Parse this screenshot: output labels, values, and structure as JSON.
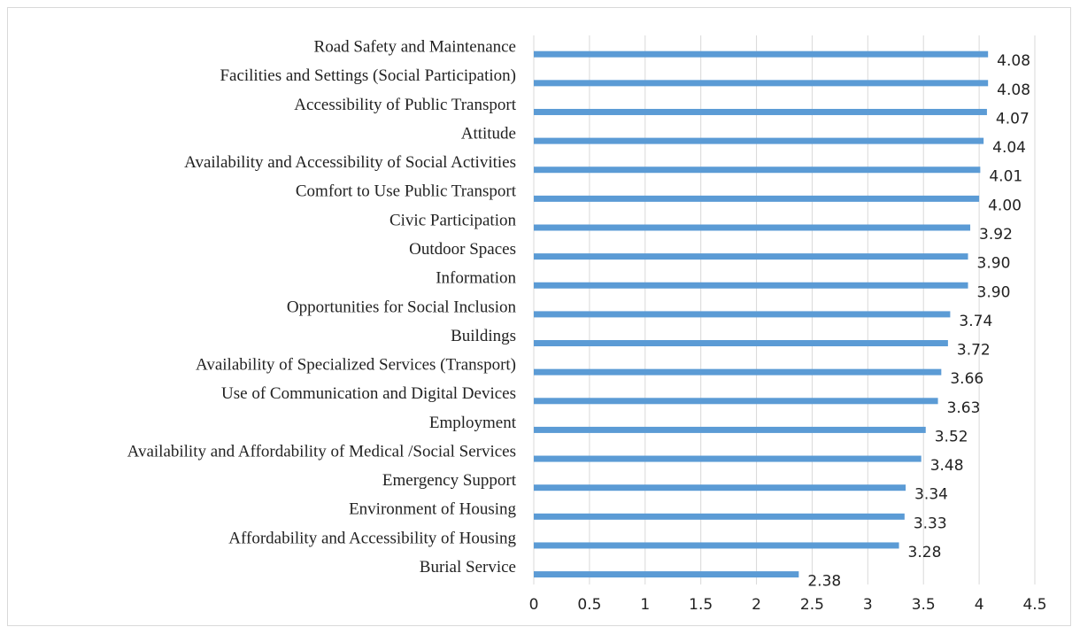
{
  "chart_data": {
    "type": "bar",
    "categories": [
      "Road Safety and Maintenance",
      "Facilities and Settings (Social Participation)",
      "Accessibility of Public Transport",
      "Attitude",
      "Availability and Accessibility of Social Activities",
      "Comfort to Use Public Transport",
      "Civic Participation",
      "Outdoor Spaces",
      "Information",
      "Opportunities for Social Inclusion",
      "Buildings",
      "Availability of Specialized Services (Transport)",
      "Use of Communication and Digital Devices",
      "Employment",
      "Availability and Affordability of Medical /Social Services",
      "Emergency Support",
      "Environment of Housing",
      "Affordability and Accessibility of Housing",
      "Burial Service"
    ],
    "values": [
      4.08,
      4.08,
      4.07,
      4.04,
      4.01,
      4.0,
      3.92,
      3.9,
      3.9,
      3.74,
      3.72,
      3.66,
      3.63,
      3.52,
      3.48,
      3.34,
      3.33,
      3.28,
      2.38
    ],
    "value_labels": [
      "4.08",
      "4.08",
      "4.07",
      "4.04",
      "4.01",
      "4.00",
      "3.92",
      "3.90",
      "3.90",
      "3.74",
      "3.72",
      "3.66",
      "3.63",
      "3.52",
      "3.48",
      "3.34",
      "3.33",
      "3.28",
      "2.38"
    ],
    "color": "#5b9bd5",
    "xlim": [
      0,
      4.5
    ],
    "xticks": [
      0,
      0.5,
      1,
      1.5,
      2,
      2.5,
      3,
      3.5,
      4,
      4.5
    ],
    "grid": true
  }
}
